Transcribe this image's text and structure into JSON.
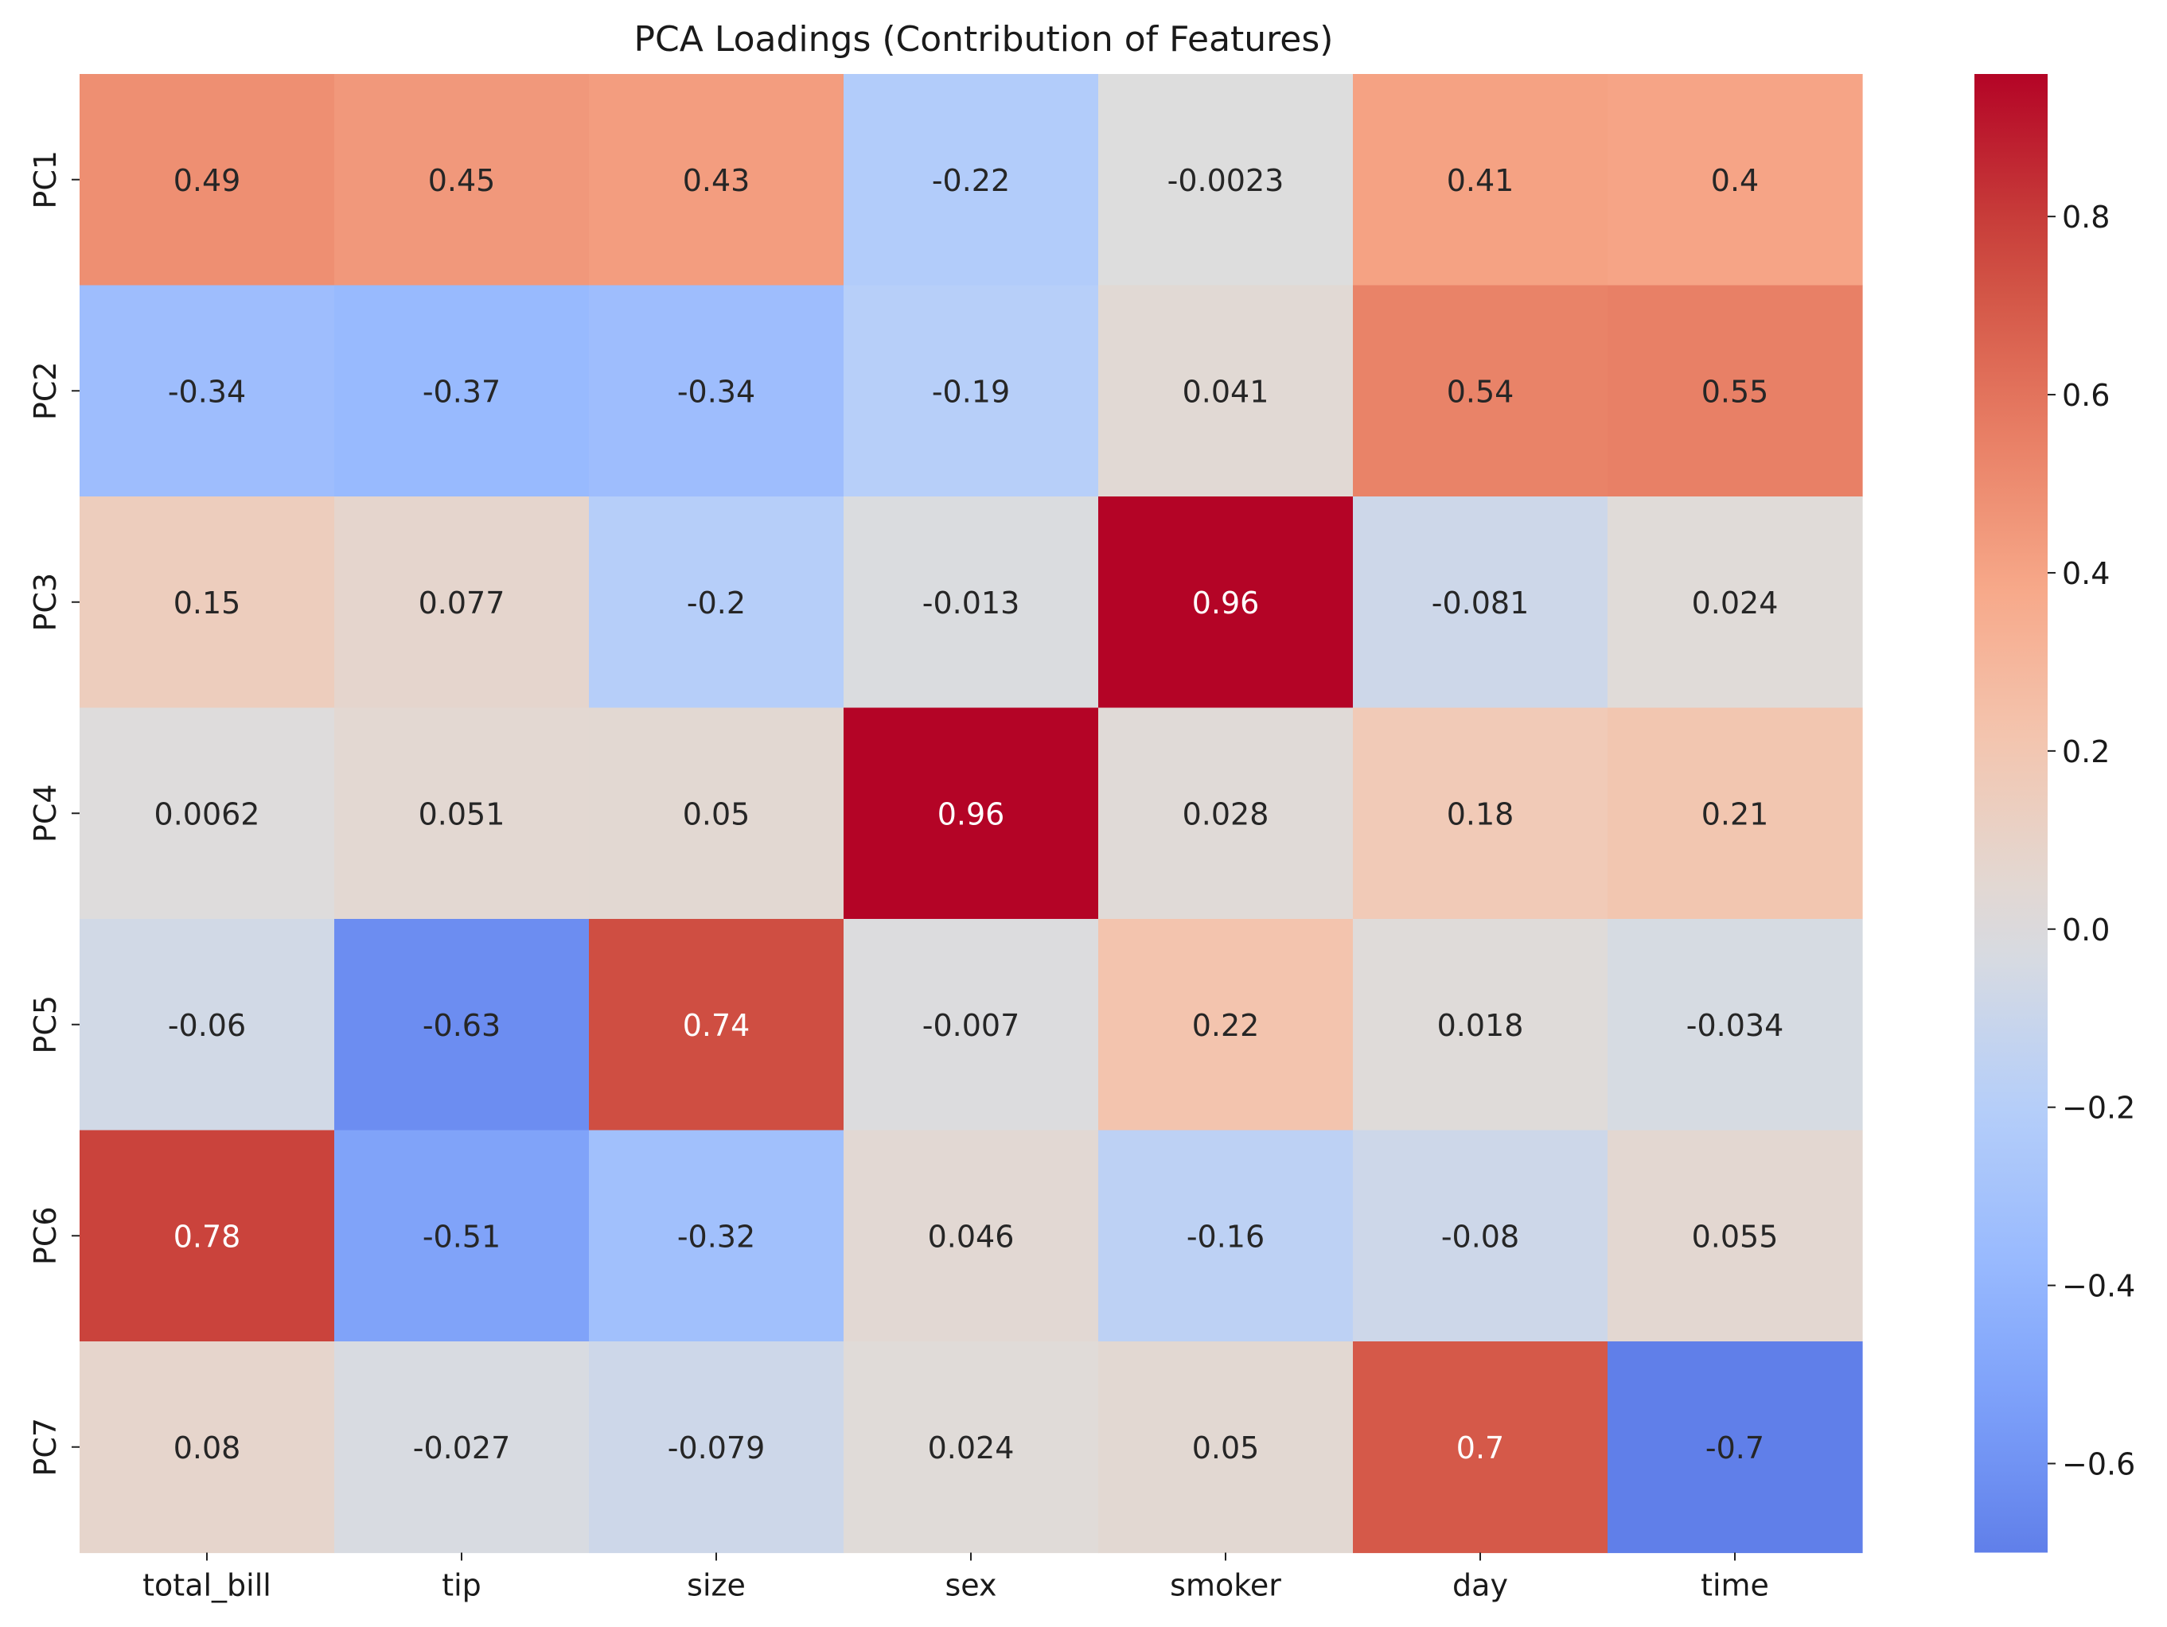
{
  "chart_data": {
    "type": "heatmap",
    "title": "PCA Loadings (Contribution of Features)",
    "xlabel": "",
    "ylabel": "",
    "columns": [
      "total_bill",
      "tip",
      "size",
      "sex",
      "smoker",
      "day",
      "time"
    ],
    "rows": [
      "PC1",
      "PC2",
      "PC3",
      "PC4",
      "PC5",
      "PC6",
      "PC7"
    ],
    "values": [
      [
        0.49,
        0.45,
        0.43,
        -0.22,
        -0.0023,
        0.41,
        0.4
      ],
      [
        -0.34,
        -0.37,
        -0.34,
        -0.19,
        0.041,
        0.54,
        0.55
      ],
      [
        0.15,
        0.077,
        -0.2,
        -0.013,
        0.96,
        -0.081,
        0.024
      ],
      [
        0.0062,
        0.051,
        0.05,
        0.96,
        0.028,
        0.18,
        0.21
      ],
      [
        -0.06,
        -0.63,
        0.74,
        -0.007,
        0.22,
        0.018,
        -0.034
      ],
      [
        0.78,
        -0.51,
        -0.32,
        0.046,
        -0.16,
        -0.08,
        0.055
      ],
      [
        0.08,
        -0.027,
        -0.079,
        0.024,
        0.05,
        0.7,
        -0.7
      ]
    ],
    "colormap": "coolwarm",
    "center": 0,
    "vmin": -0.7,
    "vmax": 0.96,
    "colorbar_ticks": [
      "−0.6",
      "−0.4",
      "−0.2",
      "0.0",
      "0.2",
      "0.4",
      "0.6",
      "0.8"
    ],
    "colorbar_tick_values": [
      -0.6,
      -0.4,
      -0.2,
      0.0,
      0.2,
      0.4,
      0.6,
      0.8
    ],
    "annotations": true
  }
}
